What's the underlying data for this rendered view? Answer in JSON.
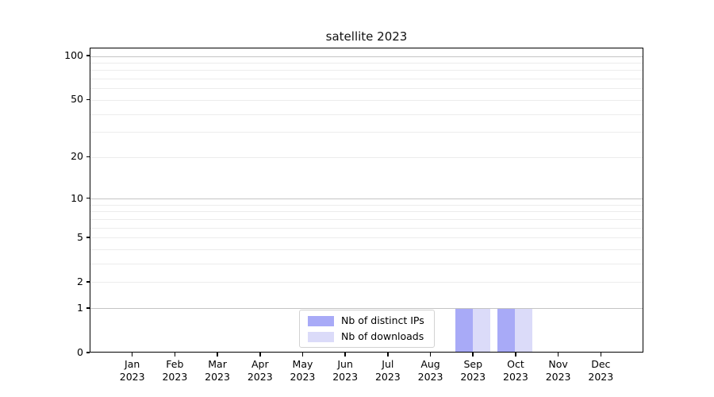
{
  "title": "satellite 2023",
  "colors": {
    "background": "#ffffff",
    "axis": "#000000",
    "grid_light": "#ececec",
    "grid_dark": "#c4c4c4",
    "legend_border": "#d2d2d2",
    "bar_distinct_ips": "#a8aaf7",
    "bar_downloads": "#dbdbf9"
  },
  "chart_data": {
    "type": "bar",
    "title": "satellite 2023",
    "xlabel": "",
    "ylabel": "",
    "yscale": "log1p",
    "grid": true,
    "legend_position": "lower center",
    "categories": [
      "Jan 2023",
      "Feb 2023",
      "Mar 2023",
      "Apr 2023",
      "May 2023",
      "Jun 2023",
      "Jul 2023",
      "Aug 2023",
      "Sep 2023",
      "Oct 2023",
      "Nov 2023",
      "Dec 2023"
    ],
    "series": [
      {
        "name": "Nb of distinct IPs",
        "color": "#a8aaf7",
        "values": [
          0,
          0,
          0,
          0,
          0,
          0,
          0,
          0,
          1,
          1,
          0,
          0
        ]
      },
      {
        "name": "Nb of downloads",
        "color": "#dbdbf9",
        "values": [
          0,
          0,
          0,
          0,
          0,
          0,
          0,
          0,
          1,
          1,
          0,
          0
        ]
      }
    ],
    "ylim": [
      0,
      113
    ],
    "yticks": [
      0,
      1,
      2,
      5,
      10,
      20,
      50,
      100
    ],
    "gridlines_light": [
      2,
      3,
      4,
      5,
      6,
      7,
      8,
      9,
      20,
      30,
      40,
      50,
      60,
      70,
      80,
      90
    ],
    "gridlines_dark": [
      1,
      10,
      100
    ]
  }
}
